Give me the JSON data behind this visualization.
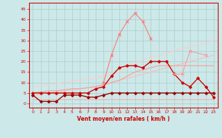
{
  "xlabel": "Vent moyen/en rafales ( km/h )",
  "ylabel": "",
  "xlim": [
    -0.5,
    23.5
  ],
  "ylim": [
    -2,
    48
  ],
  "yticks": [
    0,
    5,
    10,
    15,
    20,
    25,
    30,
    35,
    40,
    45
  ],
  "xticks": [
    0,
    1,
    2,
    3,
    4,
    5,
    6,
    7,
    8,
    9,
    10,
    11,
    12,
    13,
    14,
    15,
    16,
    17,
    18,
    19,
    20,
    21,
    22,
    23
  ],
  "background_color": "#cce8e8",
  "grid_color": "#aacccc",
  "series": [
    {
      "x": [
        0,
        1,
        2,
        3,
        4,
        5,
        6,
        7,
        8,
        9,
        10,
        11,
        12,
        13,
        14,
        15,
        16,
        17,
        18,
        19,
        20,
        21,
        22,
        23
      ],
      "y": [
        2,
        2,
        2,
        2,
        2,
        2,
        2,
        2,
        2,
        2,
        2,
        2,
        2,
        2,
        2,
        2,
        2,
        2,
        2,
        2,
        2,
        2,
        2,
        2
      ],
      "color": "#ffaaaa",
      "linewidth": 0.8,
      "marker": null,
      "markersize": 0,
      "linestyle": "-"
    },
    {
      "x": [
        0,
        1,
        2,
        3,
        4,
        5,
        6,
        7,
        8,
        9,
        10,
        11,
        12,
        13,
        14,
        15,
        16,
        17,
        18,
        19,
        20,
        21,
        22,
        23
      ],
      "y": [
        4,
        4.5,
        5,
        5.5,
        6,
        6.5,
        7,
        7.5,
        8,
        9,
        10,
        11,
        12,
        13,
        14,
        15,
        16,
        17,
        18,
        19,
        20,
        21,
        22,
        23
      ],
      "color": "#ffbbbb",
      "linewidth": 0.8,
      "marker": null,
      "markersize": 0,
      "linestyle": "-"
    },
    {
      "x": [
        0,
        1,
        2,
        3,
        4,
        5,
        6,
        7,
        8,
        9,
        10,
        11,
        12,
        13,
        14,
        15,
        16,
        17,
        18,
        19,
        20,
        21,
        22,
        23
      ],
      "y": [
        8,
        8.5,
        9,
        9.5,
        10,
        10.5,
        11,
        11.5,
        12,
        13,
        14,
        15,
        17,
        19,
        21,
        22,
        23,
        24,
        25,
        26,
        27,
        28,
        29,
        30
      ],
      "color": "#ffcccc",
      "linewidth": 0.8,
      "marker": null,
      "markersize": 0,
      "linestyle": "-"
    },
    {
      "x": [
        0,
        1,
        2,
        3,
        4,
        5,
        6,
        7,
        8,
        9,
        10,
        11,
        12,
        13,
        14,
        15,
        16,
        17,
        18,
        19,
        20,
        21,
        22,
        23
      ],
      "y": [
        5,
        5.5,
        6,
        6,
        6.5,
        7,
        7,
        7.5,
        8,
        9,
        10,
        11,
        13,
        15,
        16,
        17,
        18,
        18,
        18,
        18,
        18,
        18,
        18,
        18
      ],
      "color": "#ff9999",
      "linewidth": 0.8,
      "marker": null,
      "markersize": 0,
      "linestyle": "-"
    },
    {
      "x": [
        0,
        1,
        2,
        3,
        4,
        5,
        6,
        7,
        8,
        9,
        10,
        11,
        12,
        13,
        14,
        15,
        16,
        17,
        18,
        19,
        20,
        21,
        22,
        23
      ],
      "y": [
        5,
        5,
        5,
        5,
        5,
        5,
        5,
        5,
        7,
        8,
        13,
        17,
        18,
        18,
        17,
        20,
        20,
        20,
        14,
        10,
        8,
        12,
        8,
        3
      ],
      "color": "#cc0000",
      "linewidth": 1.0,
      "marker": "D",
      "markersize": 2.0,
      "linestyle": "-"
    },
    {
      "x": [
        0,
        1,
        2,
        3,
        4,
        5,
        6,
        7,
        8,
        9,
        10,
        11,
        12,
        13,
        14,
        15,
        16,
        17,
        18,
        19,
        20,
        21,
        22,
        23
      ],
      "y": [
        4,
        1,
        1,
        1,
        4,
        4,
        4,
        3,
        3,
        4,
        5,
        5,
        5,
        5,
        5,
        5,
        5,
        5,
        5,
        5,
        5,
        5,
        5,
        5
      ],
      "color": "#990000",
      "linewidth": 1.0,
      "marker": "D",
      "markersize": 2.0,
      "linestyle": "-"
    },
    {
      "x": [
        9,
        10,
        11,
        12,
        13,
        14,
        15
      ],
      "y": [
        10,
        23,
        33,
        39,
        43,
        39,
        31
      ],
      "color": "#ff7777",
      "linewidth": 0.8,
      "marker": "x",
      "markersize": 3,
      "linestyle": "-"
    },
    {
      "x": [
        18,
        19,
        20,
        22
      ],
      "y": [
        14,
        14,
        25,
        23
      ],
      "color": "#ff9999",
      "linewidth": 0.8,
      "marker": "x",
      "markersize": 3,
      "linestyle": "-"
    }
  ]
}
